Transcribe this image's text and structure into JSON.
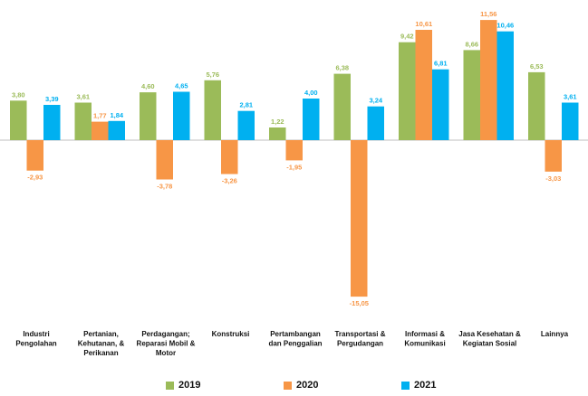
{
  "chart_data": {
    "type": "bar",
    "categories": [
      [
        "Industri",
        "Pengolahan"
      ],
      [
        "Pertanian,",
        "Kehutanan, &",
        "Perikanan"
      ],
      [
        "Perdagangan;",
        "Reparasi Mobil &",
        "Motor"
      ],
      [
        "Konstruksi"
      ],
      [
        "Pertambangan",
        "dan Penggalian"
      ],
      [
        "Transportasi &",
        "Pergudangan"
      ],
      [
        "Informasi &",
        "Komunikasi"
      ],
      [
        "Jasa Kesehatan &",
        "Kegiatan Sosial"
      ],
      [
        "Lainnya"
      ]
    ],
    "series": [
      {
        "name": "2019",
        "color": "#9BBB59",
        "values": [
          3.8,
          3.61,
          4.6,
          5.76,
          1.22,
          6.38,
          9.42,
          8.66,
          6.53
        ],
        "labels": [
          "3,80",
          "3,61",
          "4,60",
          "5,76",
          "1,22",
          "6,38",
          "9,42",
          "8,66",
          "6,53"
        ]
      },
      {
        "name": "2020",
        "color": "#F79646",
        "values": [
          -2.93,
          1.77,
          -3.78,
          -3.26,
          -1.95,
          -15.05,
          10.61,
          11.56,
          -3.03
        ],
        "labels": [
          "-2,93",
          "1,77",
          "-3,78",
          "-3,26",
          "-1,95",
          "-15,05",
          "10,61",
          "11,56",
          "-3,03"
        ]
      },
      {
        "name": "2021",
        "color": "#00B0F0",
        "values": [
          3.39,
          1.84,
          4.65,
          2.81,
          4.0,
          3.24,
          6.81,
          10.46,
          3.61
        ],
        "labels": [
          "3,39",
          "1,84",
          "4,65",
          "2,81",
          "4,00",
          "3,24",
          "6,81",
          "10,46",
          "3,61"
        ]
      }
    ],
    "ylim": [
      -15.05,
      11.56
    ],
    "legend": "bottom",
    "grid": false
  }
}
